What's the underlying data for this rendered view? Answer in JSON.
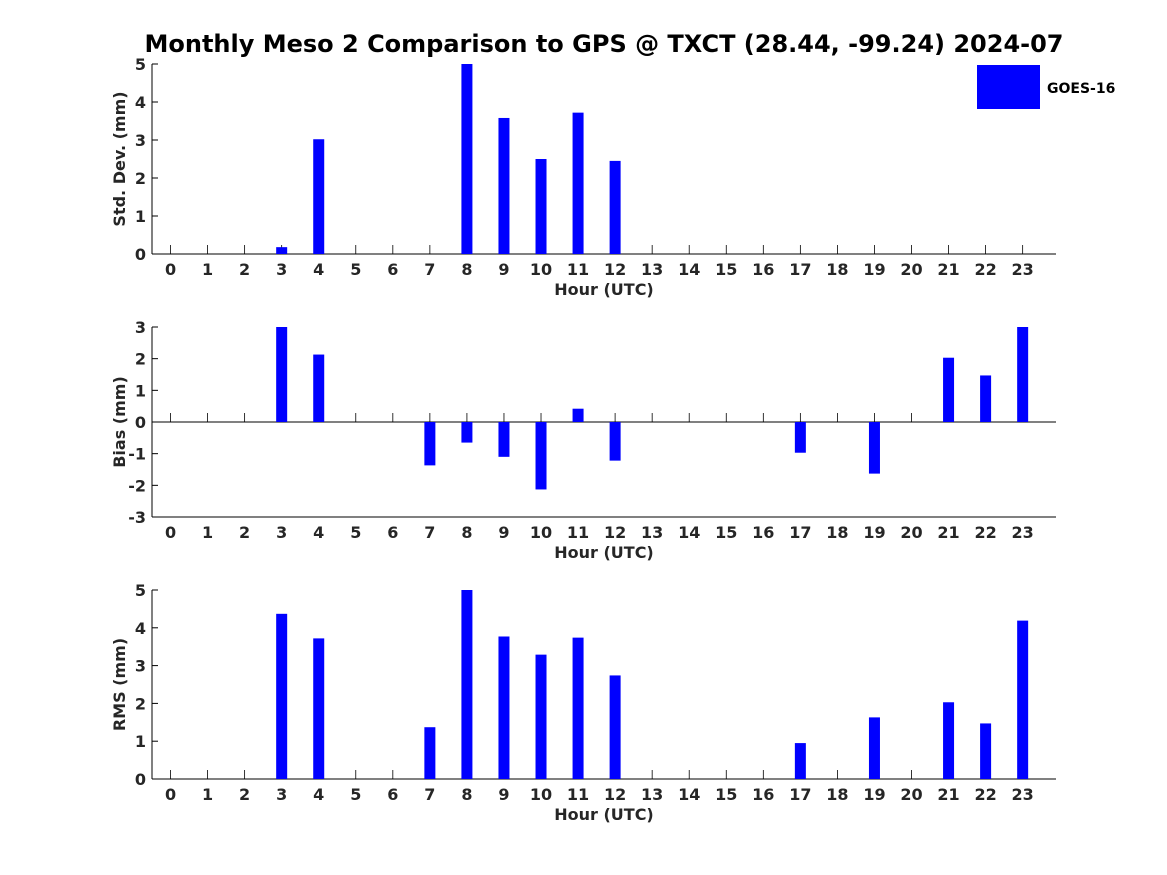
{
  "title": "Monthly Meso 2 Comparison to GPS @ TXCT (28.44, -99.24) 2024-07",
  "legend": {
    "label": "GOES-16",
    "color": "#0000ff",
    "placement": "top-right"
  },
  "colors": {
    "bar": "#0000ff",
    "axis": "#000000",
    "text": "#262626"
  },
  "chart_data": [
    {
      "type": "bar",
      "name": "stddev",
      "title": "",
      "xlabel": "Hour (UTC)",
      "ylabel": "Std. Dev. (mm)",
      "categories": [
        "0",
        "1",
        "2",
        "3",
        "4",
        "5",
        "6",
        "7",
        "8",
        "9",
        "10",
        "11",
        "12",
        "13",
        "14",
        "15",
        "16",
        "17",
        "18",
        "19",
        "20",
        "21",
        "22",
        "23"
      ],
      "x": [
        0,
        1,
        2,
        3,
        4,
        5,
        6,
        7,
        8,
        9,
        10,
        11,
        12,
        13,
        14,
        15,
        16,
        17,
        18,
        19,
        20,
        21,
        22,
        23
      ],
      "series": [
        {
          "name": "GOES-16",
          "values": [
            0,
            0,
            0,
            0.18,
            3.02,
            0,
            0,
            0,
            5.0,
            3.58,
            2.5,
            3.72,
            2.45,
            0,
            0,
            0,
            0,
            0,
            0,
            0,
            0,
            0,
            0,
            0
          ]
        }
      ],
      "ylim": [
        0,
        5
      ],
      "yticks": [
        0,
        1,
        2,
        3,
        4,
        5
      ],
      "xlim": [
        -0.5,
        23.9
      ],
      "grid": false
    },
    {
      "type": "bar",
      "name": "bias",
      "title": "",
      "xlabel": "Hour (UTC)",
      "ylabel": "Bias (mm)",
      "categories": [
        "0",
        "1",
        "2",
        "3",
        "4",
        "5",
        "6",
        "7",
        "8",
        "9",
        "10",
        "11",
        "12",
        "13",
        "14",
        "15",
        "16",
        "17",
        "18",
        "19",
        "20",
        "21",
        "22",
        "23"
      ],
      "x": [
        0,
        1,
        2,
        3,
        4,
        5,
        6,
        7,
        8,
        9,
        10,
        11,
        12,
        13,
        14,
        15,
        16,
        17,
        18,
        19,
        20,
        21,
        22,
        23
      ],
      "series": [
        {
          "name": "GOES-16",
          "values": [
            0,
            0,
            0,
            3.0,
            2.13,
            0,
            0,
            -1.37,
            -0.65,
            -1.1,
            -2.13,
            0.42,
            -1.22,
            0,
            0,
            0,
            0,
            -0.97,
            0,
            -1.63,
            0,
            2.03,
            1.47,
            3.0
          ]
        }
      ],
      "ylim": [
        -3,
        3
      ],
      "yticks": [
        -3,
        -2,
        -1,
        0,
        1,
        2,
        3
      ],
      "xlim": [
        -0.5,
        23.9
      ],
      "grid": false
    },
    {
      "type": "bar",
      "name": "rms",
      "title": "",
      "xlabel": "Hour (UTC)",
      "ylabel": "RMS (mm)",
      "categories": [
        "0",
        "1",
        "2",
        "3",
        "4",
        "5",
        "6",
        "7",
        "8",
        "9",
        "10",
        "11",
        "12",
        "13",
        "14",
        "15",
        "16",
        "17",
        "18",
        "19",
        "20",
        "21",
        "22",
        "23"
      ],
      "x": [
        0,
        1,
        2,
        3,
        4,
        5,
        6,
        7,
        8,
        9,
        10,
        11,
        12,
        13,
        14,
        15,
        16,
        17,
        18,
        19,
        20,
        21,
        22,
        23
      ],
      "series": [
        {
          "name": "GOES-16",
          "values": [
            0,
            0,
            0,
            4.37,
            3.72,
            0,
            0,
            1.37,
            5.0,
            3.77,
            3.29,
            3.74,
            2.74,
            0,
            0,
            0,
            0,
            0.95,
            0,
            1.63,
            0,
            2.03,
            1.47,
            4.19
          ]
        }
      ],
      "ylim": [
        0,
        5
      ],
      "yticks": [
        0,
        1,
        2,
        3,
        4,
        5
      ],
      "xlim": [
        -0.5,
        23.9
      ],
      "grid": false
    }
  ]
}
